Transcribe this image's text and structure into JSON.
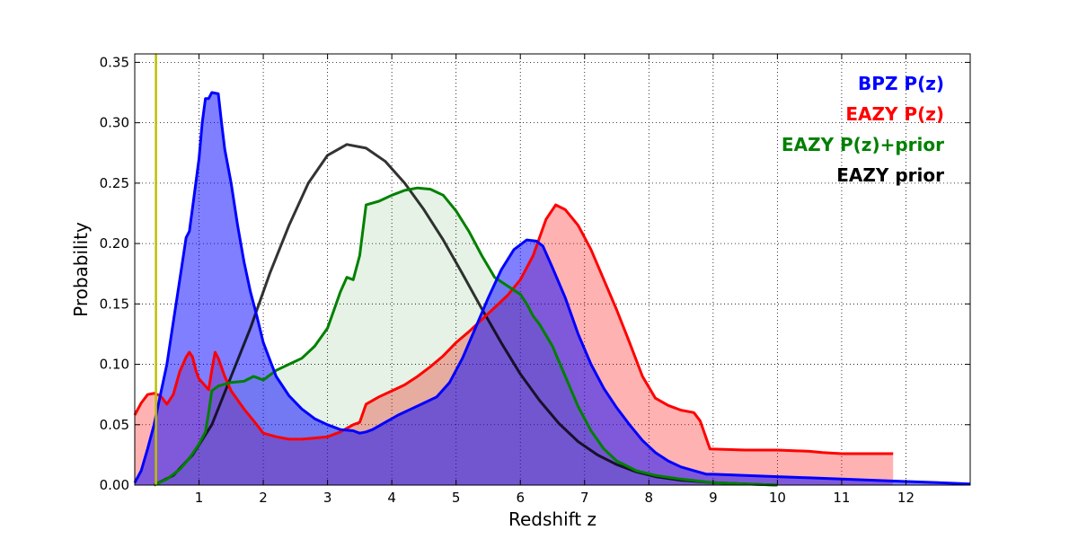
{
  "chart_data": {
    "type": "area",
    "title": "",
    "xlabel": "Redshift z",
    "ylabel": "Probability",
    "xlim": [
      0,
      13
    ],
    "ylim": [
      0,
      0.357
    ],
    "grid": true,
    "legend_position": "top-right",
    "xticks": [
      1,
      2,
      3,
      4,
      5,
      6,
      7,
      8,
      9,
      10,
      11,
      12
    ],
    "yticks": [
      0.0,
      0.05,
      0.1,
      0.15,
      0.2,
      0.25,
      0.3,
      0.35
    ],
    "ytick_labels": [
      "0.00",
      "0.05",
      "0.10",
      "0.15",
      "0.20",
      "0.25",
      "0.30",
      "0.35"
    ],
    "vertical_line": {
      "x": 0.33,
      "color": "#bfbf00"
    },
    "series": [
      {
        "name": "EAZY prior",
        "color": "#000000",
        "fill": false,
        "x": [
          0.3,
          0.6,
          0.9,
          1.2,
          1.5,
          1.8,
          2.1,
          2.4,
          2.7,
          3.0,
          3.3,
          3.6,
          3.9,
          4.2,
          4.5,
          4.8,
          5.1,
          5.4,
          5.7,
          6.0,
          6.3,
          6.6,
          6.9,
          7.2,
          7.5,
          7.8,
          8.1,
          8.5,
          9.0,
          9.5,
          10.0
        ],
        "y": [
          0.0,
          0.008,
          0.025,
          0.05,
          0.09,
          0.13,
          0.175,
          0.215,
          0.25,
          0.273,
          0.282,
          0.279,
          0.268,
          0.25,
          0.228,
          0.203,
          0.175,
          0.146,
          0.118,
          0.092,
          0.07,
          0.051,
          0.036,
          0.025,
          0.017,
          0.011,
          0.007,
          0.004,
          0.002,
          0.001,
          0.0
        ]
      },
      {
        "name": "EAZY P(z)",
        "color": "#ff0000",
        "fill": "#ff0000",
        "fill_opacity": 0.3,
        "x": [
          0,
          0.1,
          0.2,
          0.3,
          0.4,
          0.5,
          0.6,
          0.7,
          0.8,
          0.85,
          0.9,
          0.95,
          1.0,
          1.1,
          1.15,
          1.2,
          1.25,
          1.3,
          1.4,
          1.5,
          1.7,
          1.9,
          2.0,
          2.2,
          2.4,
          2.6,
          2.8,
          3.0,
          3.2,
          3.4,
          3.5,
          3.6,
          3.8,
          4.0,
          4.2,
          4.4,
          4.6,
          4.8,
          5.0,
          5.2,
          5.4,
          5.6,
          5.8,
          6.0,
          6.2,
          6.4,
          6.55,
          6.7,
          6.9,
          7.1,
          7.3,
          7.5,
          7.7,
          7.9,
          8.1,
          8.3,
          8.5,
          8.7,
          8.8,
          8.95,
          9.5,
          10.0,
          10.5,
          10.7,
          11.0,
          11.5,
          11.8
        ],
        "y": [
          0.058,
          0.068,
          0.075,
          0.076,
          0.074,
          0.067,
          0.075,
          0.094,
          0.106,
          0.11,
          0.106,
          0.095,
          0.088,
          0.082,
          0.079,
          0.095,
          0.11,
          0.105,
          0.09,
          0.078,
          0.063,
          0.05,
          0.043,
          0.04,
          0.038,
          0.038,
          0.039,
          0.04,
          0.044,
          0.05,
          0.052,
          0.067,
          0.073,
          0.078,
          0.083,
          0.09,
          0.098,
          0.107,
          0.118,
          0.127,
          0.137,
          0.147,
          0.157,
          0.17,
          0.19,
          0.22,
          0.232,
          0.228,
          0.215,
          0.195,
          0.17,
          0.145,
          0.118,
          0.09,
          0.072,
          0.066,
          0.062,
          0.06,
          0.053,
          0.03,
          0.029,
          0.029,
          0.028,
          0.027,
          0.026,
          0.026,
          0.026
        ]
      },
      {
        "name": "EAZY P(z)+prior",
        "color": "#008000",
        "fill": "#008000",
        "fill_opacity": 0.1,
        "x": [
          0.3,
          0.5,
          0.7,
          0.8,
          0.9,
          1.0,
          1.1,
          1.15,
          1.2,
          1.3,
          1.5,
          1.7,
          1.85,
          1.9,
          2.0,
          2.2,
          2.4,
          2.6,
          2.8,
          3.0,
          3.1,
          3.2,
          3.3,
          3.4,
          3.5,
          3.6,
          3.8,
          4.0,
          4.2,
          4.4,
          4.6,
          4.8,
          5.0,
          5.2,
          5.4,
          5.6,
          5.8,
          6.0,
          6.1,
          6.2,
          6.3,
          6.5,
          6.7,
          6.9,
          7.1,
          7.3,
          7.5,
          7.8,
          8.1,
          8.5,
          9.0,
          9.5,
          10.0
        ],
        "y": [
          0.0,
          0.005,
          0.013,
          0.019,
          0.026,
          0.034,
          0.044,
          0.06,
          0.078,
          0.082,
          0.085,
          0.086,
          0.09,
          0.089,
          0.087,
          0.095,
          0.1,
          0.105,
          0.115,
          0.13,
          0.145,
          0.16,
          0.172,
          0.17,
          0.19,
          0.232,
          0.235,
          0.24,
          0.244,
          0.246,
          0.245,
          0.24,
          0.227,
          0.21,
          0.19,
          0.172,
          0.165,
          0.158,
          0.15,
          0.14,
          0.133,
          0.115,
          0.09,
          0.065,
          0.045,
          0.03,
          0.02,
          0.012,
          0.008,
          0.005,
          0.002,
          0.001,
          0.0
        ]
      },
      {
        "name": "BPZ P(z)",
        "color": "#0000ff",
        "fill": "#0000ff",
        "fill_opacity": 0.5,
        "x": [
          0,
          0.1,
          0.2,
          0.3,
          0.4,
          0.5,
          0.6,
          0.7,
          0.8,
          0.85,
          0.9,
          1.0,
          1.05,
          1.1,
          1.15,
          1.2,
          1.3,
          1.35,
          1.4,
          1.5,
          1.6,
          1.7,
          1.8,
          1.9,
          2.0,
          2.2,
          2.4,
          2.6,
          2.8,
          3.0,
          3.2,
          3.4,
          3.5,
          3.6,
          3.7,
          3.9,
          4.1,
          4.3,
          4.5,
          4.7,
          4.9,
          5.1,
          5.3,
          5.5,
          5.7,
          5.9,
          6.1,
          6.25,
          6.35,
          6.5,
          6.7,
          6.9,
          7.1,
          7.3,
          7.5,
          7.7,
          7.9,
          8.1,
          8.3,
          8.5,
          8.7,
          8.9,
          9.0,
          9.5,
          10.0,
          10.5,
          11.0,
          11.5,
          12.0,
          12.5,
          13.0
        ],
        "y": [
          0.002,
          0.012,
          0.03,
          0.05,
          0.075,
          0.1,
          0.135,
          0.17,
          0.205,
          0.21,
          0.23,
          0.27,
          0.3,
          0.32,
          0.32,
          0.325,
          0.324,
          0.3,
          0.278,
          0.25,
          0.215,
          0.185,
          0.16,
          0.14,
          0.118,
          0.09,
          0.074,
          0.063,
          0.055,
          0.05,
          0.046,
          0.045,
          0.043,
          0.044,
          0.046,
          0.052,
          0.058,
          0.063,
          0.068,
          0.073,
          0.085,
          0.105,
          0.13,
          0.155,
          0.178,
          0.195,
          0.203,
          0.202,
          0.198,
          0.18,
          0.155,
          0.125,
          0.1,
          0.08,
          0.064,
          0.05,
          0.037,
          0.027,
          0.02,
          0.015,
          0.012,
          0.009,
          0.009,
          0.008,
          0.007,
          0.006,
          0.005,
          0.004,
          0.003,
          0.002,
          0.001
        ]
      }
    ],
    "legend": [
      {
        "label": "BPZ P(z)",
        "color": "#0000ff"
      },
      {
        "label": "EAZY P(z)",
        "color": "#ff0000"
      },
      {
        "label": "EAZY P(z)+prior",
        "color": "#008000"
      },
      {
        "label": "EAZY prior",
        "color": "#000000"
      }
    ]
  }
}
